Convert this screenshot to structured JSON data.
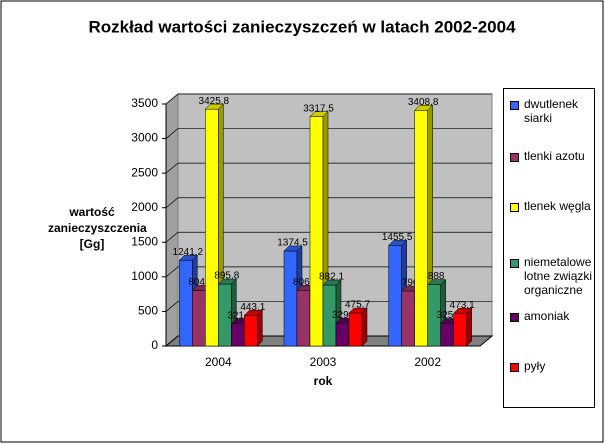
{
  "chart_data": {
    "type": "bar3d",
    "title": "Rozkład wartości zanieczyszczeń w latach 2002-2004",
    "x_label": "rok",
    "y_label": "wartość zanieczyszczenia [Gg]",
    "categories": [
      "2004",
      "2003",
      "2002"
    ],
    "series": [
      {
        "name": "dwutlenek siarki",
        "color": "#3366ff",
        "values": [
          1241.2,
          1374.5,
          1455.5
        ]
      },
      {
        "name": "tlenki azotu",
        "color": "#993366",
        "values": [
          804.2,
          806.2,
          796
        ]
      },
      {
        "name": "tlenek węgla",
        "color": "#ffff00",
        "values": [
          3425.8,
          3317.5,
          3408.8
        ]
      },
      {
        "name": "niemetalowe lotne związki organiczne",
        "color": "#339966",
        "values": [
          895.8,
          882.1,
          888
        ]
      },
      {
        "name": "amoniak",
        "color": "#660066",
        "values": [
          321.6,
          329.4,
          325.2
        ]
      },
      {
        "name": "pyły",
        "color": "#ff0000",
        "values": [
          443.1,
          475.7,
          473.1
        ]
      }
    ],
    "ylim": [
      0,
      3500
    ],
    "yticks": [
      0,
      500,
      1000,
      1500,
      2000,
      2500,
      3000,
      3500
    ],
    "grid": true,
    "legend": "right"
  }
}
